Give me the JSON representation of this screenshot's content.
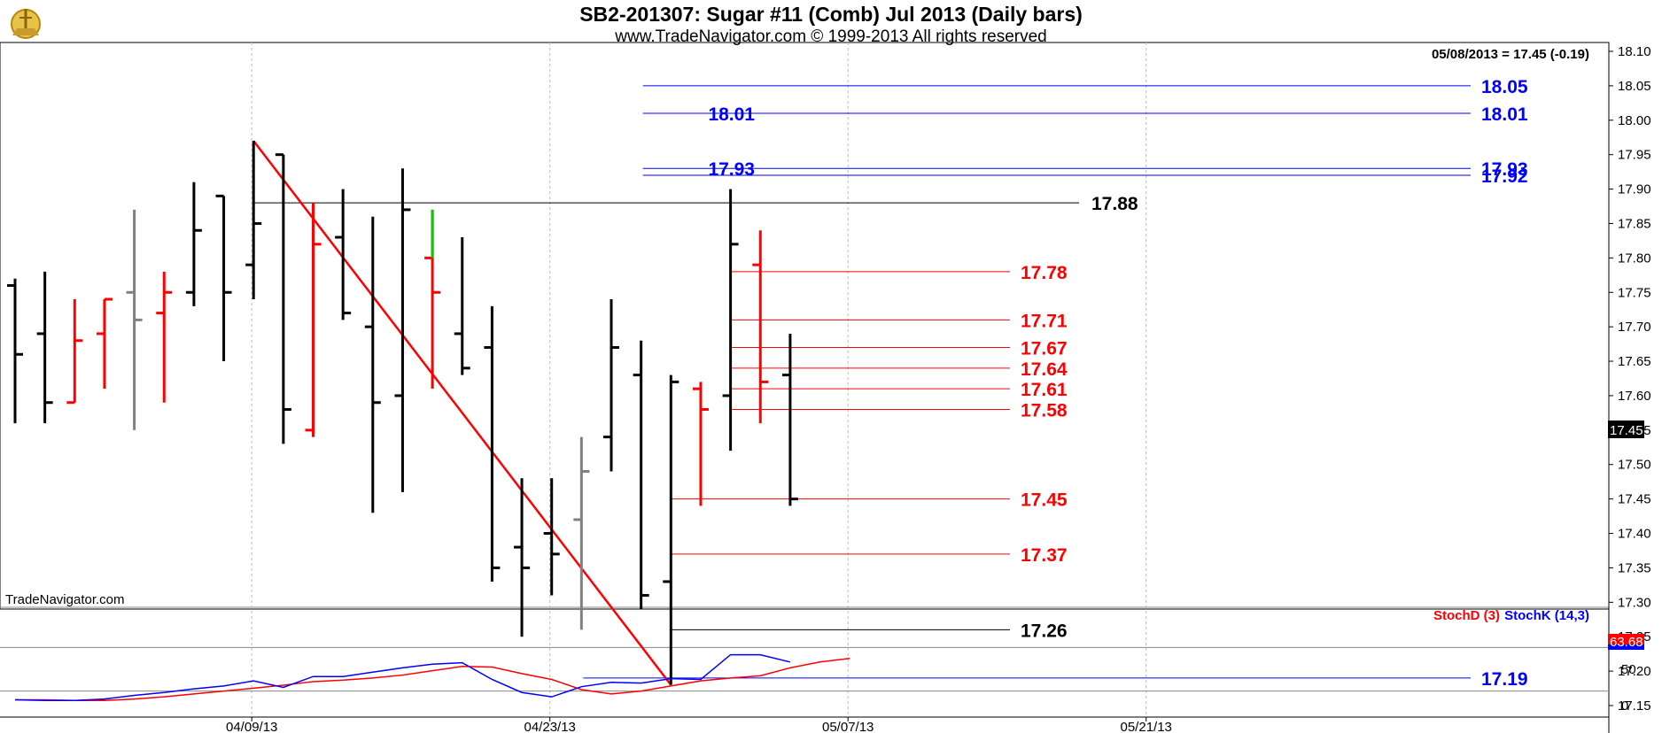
{
  "title": "SB2-201307:  Sugar #11 (Comb) Jul 2013  (Daily bars)",
  "subtitle": "www.TradeNavigator.com © 1999-2013 All rights reserved",
  "last_quote": "05/08/2013 = 17.45 (-0.19)",
  "watermark": "TradeNavigator.com",
  "price_tag": "17.45",
  "stoch_tag": "63.68",
  "colors": {
    "up": "#ff0000",
    "down": "#000000",
    "neutral": "#808080",
    "green": "#00cc00",
    "blue": "#0000ff",
    "red": "#ff0000",
    "black": "#000000"
  },
  "legend": {
    "stochD": "StochD (3)",
    "stochK": "StochK (14,3)"
  },
  "chart_data": [
    {
      "type": "ohlc",
      "title": "SB2-201307:  Sugar #11 (Comb) Jul 2013  (Daily bars)",
      "ylim": [
        17.15,
        18.1
      ],
      "yticks": [
        "18.10",
        "18.05",
        "18.00",
        "17.95",
        "17.90",
        "17.85",
        "17.80",
        "17.75",
        "17.70",
        "17.65",
        "17.60",
        "17.55",
        "17.50",
        "17.45",
        "17.40",
        "17.35",
        "17.30",
        "17.25",
        "17.20",
        "17.15"
      ],
      "xticks": [
        "04/09/13",
        "04/23/13",
        "05/07/13",
        "05/21/13"
      ],
      "bars": [
        {
          "date": "03/27",
          "o": 17.76,
          "h": 17.77,
          "l": 17.56,
          "c": 17.66,
          "col": "down"
        },
        {
          "date": "03/28",
          "o": 17.69,
          "h": 17.78,
          "l": 17.56,
          "c": 17.59,
          "col": "down"
        },
        {
          "date": "04/01",
          "o": 17.59,
          "h": 17.74,
          "l": 17.59,
          "c": 17.68,
          "col": "up"
        },
        {
          "date": "04/02",
          "o": 17.69,
          "h": 17.74,
          "l": 17.61,
          "c": 17.74,
          "col": "up"
        },
        {
          "date": "04/03",
          "o": 17.75,
          "h": 17.87,
          "l": 17.55,
          "c": 17.71,
          "col": "neutral"
        },
        {
          "date": "04/04",
          "o": 17.72,
          "h": 17.78,
          "l": 17.59,
          "c": 17.75,
          "col": "up"
        },
        {
          "date": "04/05",
          "o": 17.75,
          "h": 17.91,
          "l": 17.73,
          "c": 17.84,
          "col": "down"
        },
        {
          "date": "04/08",
          "o": 17.89,
          "h": 17.89,
          "l": 17.65,
          "c": 17.75,
          "col": "down"
        },
        {
          "date": "04/09",
          "o": 17.79,
          "h": 17.97,
          "l": 17.74,
          "c": 17.85,
          "col": "down"
        },
        {
          "date": "04/10",
          "o": 17.95,
          "h": 17.95,
          "l": 17.53,
          "c": 17.58,
          "col": "down"
        },
        {
          "date": "04/11",
          "o": 17.55,
          "h": 17.88,
          "l": 17.54,
          "c": 17.82,
          "col": "up"
        },
        {
          "date": "04/12",
          "o": 17.83,
          "h": 17.9,
          "l": 17.71,
          "c": 17.72,
          "col": "down"
        },
        {
          "date": "04/15",
          "o": 17.7,
          "h": 17.86,
          "l": 17.43,
          "c": 17.59,
          "col": "down"
        },
        {
          "date": "04/16",
          "o": 17.6,
          "h": 17.93,
          "l": 17.46,
          "c": 17.87,
          "col": "down"
        },
        {
          "date": "04/17",
          "o": 17.8,
          "h": 17.87,
          "l": 17.61,
          "c": 17.75,
          "col": "up"
        },
        {
          "date": "04/18",
          "o": 17.69,
          "h": 17.83,
          "l": 17.63,
          "c": 17.64,
          "col": "down"
        },
        {
          "date": "04/19",
          "o": 17.67,
          "h": 17.73,
          "l": 17.33,
          "c": 17.35,
          "col": "down"
        },
        {
          "date": "04/22",
          "o": 17.38,
          "h": 17.48,
          "l": 17.25,
          "c": 17.35,
          "col": "down"
        },
        {
          "date": "04/23",
          "o": 17.4,
          "h": 17.48,
          "l": 17.31,
          "c": 17.37,
          "col": "down"
        },
        {
          "date": "04/24",
          "o": 17.42,
          "h": 17.54,
          "l": 17.26,
          "c": 17.49,
          "col": "neutral"
        },
        {
          "date": "04/25",
          "o": 17.54,
          "h": 17.74,
          "l": 17.49,
          "c": 17.67,
          "col": "down"
        },
        {
          "date": "04/26",
          "o": 17.63,
          "h": 17.68,
          "l": 17.29,
          "c": 17.31,
          "col": "down"
        },
        {
          "date": "04/29",
          "o": 17.33,
          "h": 17.63,
          "l": 17.18,
          "c": 17.62,
          "col": "down"
        },
        {
          "date": "04/30",
          "o": 17.61,
          "h": 17.62,
          "l": 17.44,
          "c": 17.58,
          "col": "up"
        },
        {
          "date": "05/01",
          "o": 17.6,
          "h": 17.9,
          "l": 17.52,
          "c": 17.82,
          "col": "down"
        },
        {
          "date": "05/02",
          "o": 17.79,
          "h": 17.84,
          "l": 17.56,
          "c": 17.62,
          "col": "up"
        },
        {
          "date": "05/03",
          "o": 17.63,
          "h": 17.69,
          "l": 17.44,
          "c": 17.45,
          "col": "down"
        }
      ],
      "special": {
        "date": "04/17",
        "from": 17.8,
        "to": 17.87,
        "col": "green"
      },
      "levels": [
        {
          "value": 17.88,
          "label": "17.88",
          "color": "black",
          "from": "04/09",
          "to": "05/07"
        },
        {
          "value": 17.78,
          "label": "17.78",
          "color": "red",
          "from": "05/01",
          "to": "05/10"
        },
        {
          "value": 17.71,
          "label": "17.71",
          "color": "red",
          "from": "05/01",
          "to": "05/10"
        },
        {
          "value": 17.67,
          "label": "17.67",
          "color": "red",
          "from": "05/01",
          "to": "05/10"
        },
        {
          "value": 17.64,
          "label": "17.64",
          "color": "red",
          "from": "05/01",
          "to": "05/10"
        },
        {
          "value": 17.61,
          "label": "17.61",
          "color": "red",
          "from": "05/01",
          "to": "05/10"
        },
        {
          "value": 17.58,
          "label": "17.58",
          "color": "red",
          "from": "05/01",
          "to": "05/10"
        },
        {
          "value": 17.45,
          "label": "17.45",
          "color": "red",
          "from": "04/29",
          "to": "05/10"
        },
        {
          "value": 17.37,
          "label": "17.37",
          "color": "red",
          "from": "04/29",
          "to": "05/10"
        },
        {
          "value": 17.26,
          "label": "17.26",
          "color": "black",
          "from": "04/29",
          "to": "05/10"
        },
        {
          "value": 18.05,
          "label": "18.05",
          "color": "blue",
          "from": "04/26",
          "to": "05/26"
        },
        {
          "value": 18.01,
          "label": "18.01",
          "color": "blue",
          "from": "04/26",
          "to": "05/26"
        },
        {
          "value": 17.93,
          "label": "17.93",
          "color": "blue",
          "from": "04/26",
          "to": "05/26"
        },
        {
          "value": 17.92,
          "label": "17.92",
          "color": "blue",
          "from": "04/26",
          "to": "05/26"
        },
        {
          "value": 17.19,
          "label": "17.19",
          "color": "blue",
          "from": "04/24",
          "to": "05/26"
        }
      ],
      "trendline": {
        "from": {
          "date": "04/09",
          "value": 17.97
        },
        "to": {
          "date": "04/29",
          "value": 17.18
        },
        "color": "red"
      }
    },
    {
      "type": "line",
      "title": "Stochastic",
      "ylim": [
        0,
        100
      ],
      "yticks": [
        "50",
        "0"
      ],
      "series": [
        {
          "name": "StochD (3)",
          "color": "red",
          "values": [
            8,
            8,
            7,
            7,
            9,
            12,
            16,
            20,
            24,
            28,
            33,
            35,
            38,
            42,
            48,
            54,
            53,
            44,
            36,
            22,
            16,
            20,
            27,
            34,
            38,
            41,
            52,
            60,
            65
          ]
        },
        {
          "name": "StochK (14,3)",
          "color": "blue",
          "values": [
            8,
            7,
            7,
            9,
            14,
            18,
            23,
            27,
            34,
            25,
            40,
            40,
            46,
            52,
            57,
            59,
            36,
            18,
            12,
            26,
            32,
            31,
            37,
            36,
            70,
            70,
            60,
            null,
            null
          ]
        }
      ],
      "last_value": "63.68"
    }
  ]
}
